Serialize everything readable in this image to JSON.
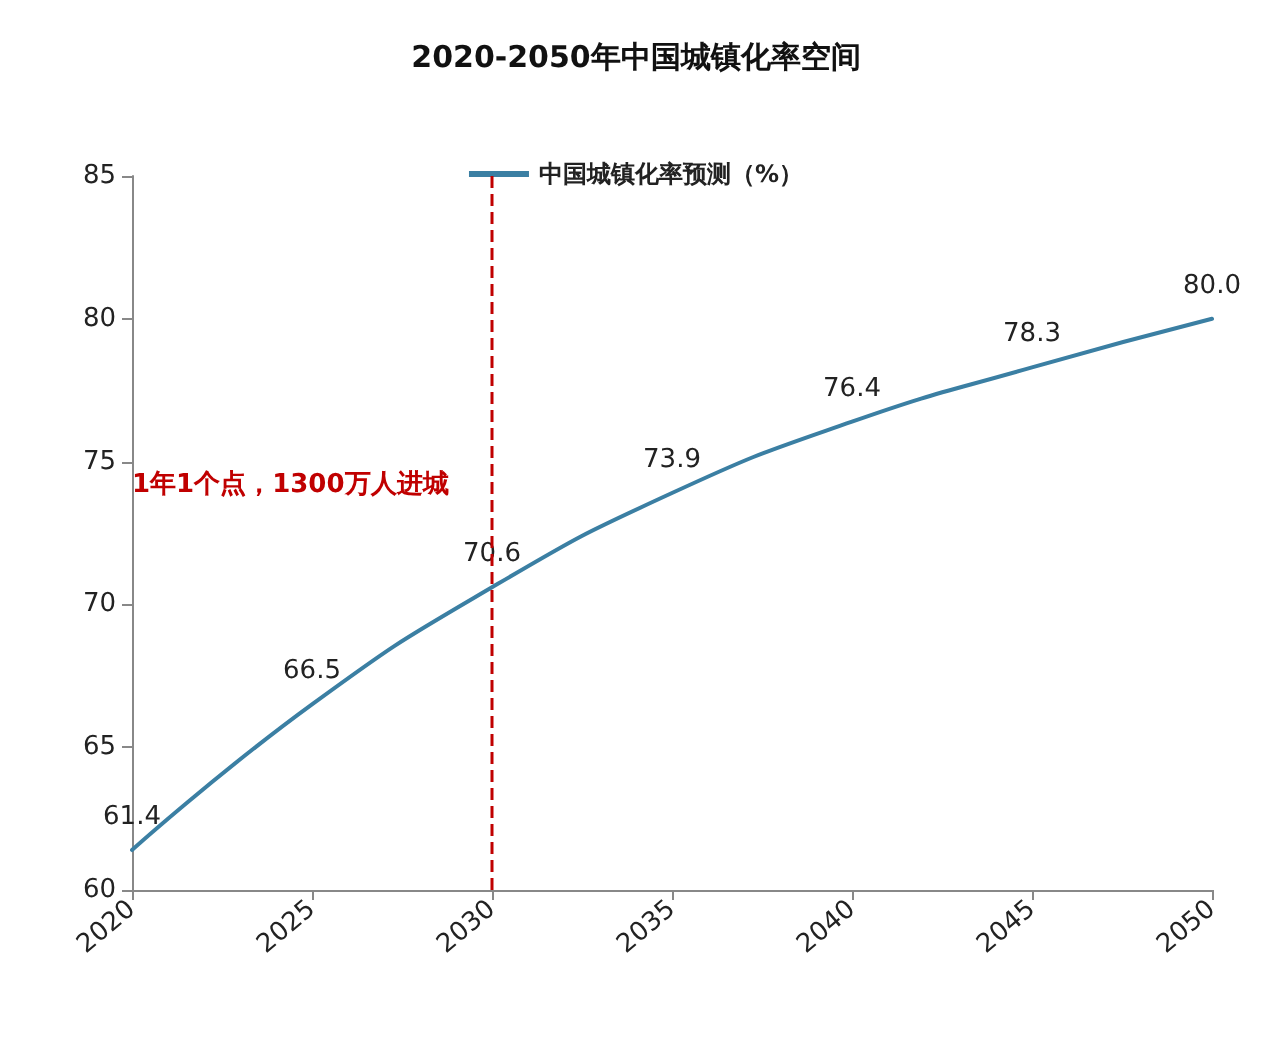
{
  "chart_data": {
    "type": "line",
    "title": "2020-2050年中国城镇化率空间",
    "x": [
      2020,
      2025,
      2030,
      2035,
      2040,
      2045,
      2050
    ],
    "series": [
      {
        "name": "中国城镇化率预测（%）",
        "color": "#3b7fa3",
        "values": [
          61.4,
          66.5,
          70.6,
          73.9,
          76.4,
          78.3,
          80.0
        ],
        "value_labels": [
          "61.4",
          "66.5",
          "70.6",
          "73.9",
          "76.4",
          "78.3",
          "80.0"
        ]
      }
    ],
    "xlim": [
      2020,
      2050
    ],
    "xticks": [
      2020,
      2025,
      2030,
      2035,
      2040,
      2045,
      2050
    ],
    "ylim": [
      60,
      85
    ],
    "yticks": [
      60,
      65,
      70,
      75,
      80,
      85
    ],
    "ref_lines": [
      {
        "axis": "x",
        "value": 2030,
        "color": "#c00000",
        "line_style": "dashed"
      }
    ],
    "annotations": [
      "1年1个点，1300万人进城"
    ],
    "grid": false,
    "legend": "top",
    "marker": "none",
    "line_style": "solid"
  }
}
